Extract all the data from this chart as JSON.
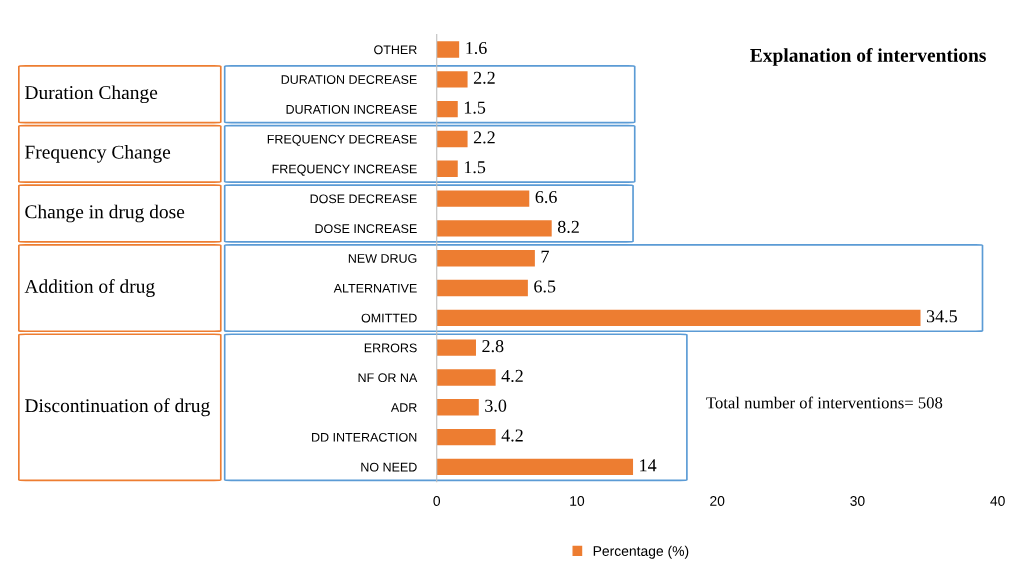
{
  "chart_data": {
    "type": "bar",
    "orientation": "horizontal",
    "title": "Explanation of interventions",
    "categories": [
      "OTHER",
      "DURATION DECREASE",
      "DURATION INCREASE",
      "FREQUENCY DECREASE",
      "FREQUENCY INCREASE",
      "DOSE DECREASE",
      "DOSE INCREASE",
      "NEW DRUG",
      "ALTERNATIVE",
      "OMITTED",
      "ERRORS",
      "NF OR NA",
      "ADR",
      "DD INTERACTION",
      "NO NEED"
    ],
    "series": [
      {
        "name": "Percentage (%)",
        "color": "#ed7d31",
        "values": [
          1.6,
          2.2,
          1.5,
          2.2,
          1.5,
          6.6,
          8.2,
          7,
          6.5,
          34.5,
          2.8,
          4.2,
          3.0,
          4.2,
          14
        ],
        "value_labels": [
          "1.6",
          "2.2",
          "1.5",
          "2.2",
          "1.5",
          "6.6",
          "8.2",
          "7",
          "6.5",
          "34.5",
          "2.8",
          "4.2",
          "3.0",
          "4.2",
          "14"
        ]
      }
    ],
    "xlim": [
      0,
      40
    ],
    "xticks": [
      0,
      10,
      20,
      30,
      40
    ],
    "grid": false,
    "legend": "bottom",
    "annotations": [
      "Duration Change",
      "Frequency Change",
      "Change in drug dose",
      "Addition of drug",
      "Discontinuation of drug",
      "Total number of interventions= 508"
    ]
  }
}
